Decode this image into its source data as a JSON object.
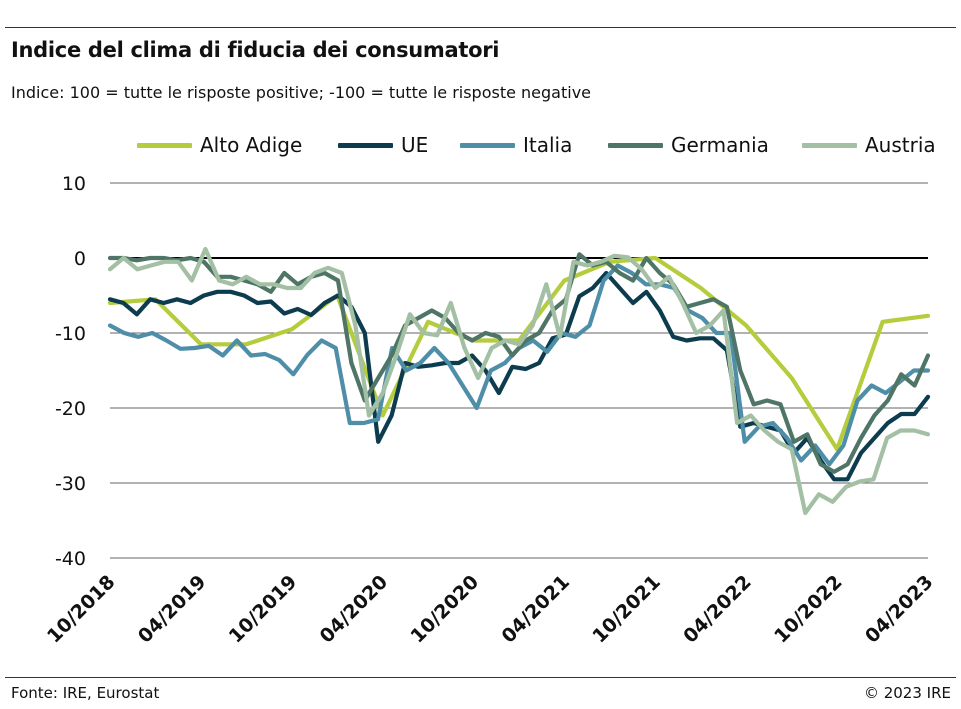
{
  "header": {
    "title": "Indice del clima di fiducia dei consumatori",
    "subtitle": "Indice: 100 = tutte le risposte positive; -100 = tutte le risposte negative"
  },
  "footer": {
    "source": "Fonte: IRE, Eurostat",
    "copyright": "© 2023 IRE"
  },
  "chart_data": {
    "type": "line",
    "title": "Indice del clima di fiducia dei consumatori",
    "ylim": [
      -40,
      10
    ],
    "yticks": [
      10,
      0,
      -10,
      -20,
      -30,
      -40
    ],
    "grid": true,
    "legend_position": "top",
    "x_labels": [
      "10/2018",
      "04/2019",
      "10/2019",
      "04/2020",
      "10/2020",
      "04/2021",
      "10/2021",
      "04/2022",
      "10/2022",
      "04/2023"
    ],
    "x_start": "10/2018",
    "x_end": "04/2023",
    "series": [
      {
        "name": "Alto Adige",
        "color": "#b5cc3c",
        "points": [
          [
            "10/2018",
            -6
          ],
          [
            "01/2019",
            -5.5
          ],
          [
            "04/2019",
            -11.5
          ],
          [
            "07/2019",
            -11.5
          ],
          [
            "10/2019",
            -9.5
          ],
          [
            "01/2020",
            -5
          ],
          [
            "04/2020",
            -21
          ],
          [
            "07/2020",
            -8.5
          ],
          [
            "10/2020",
            -11
          ],
          [
            "01/2021",
            -11
          ],
          [
            "04/2021",
            -3
          ],
          [
            "07/2021",
            -0.5
          ],
          [
            "10/2021",
            0
          ],
          [
            "01/2022",
            -4
          ],
          [
            "04/2022",
            -9
          ],
          [
            "07/2022",
            -16
          ],
          [
            "10/2022",
            -25.5
          ],
          [
            "01/2023",
            -8.5
          ],
          [
            "04/2023",
            -7.7
          ]
        ]
      },
      {
        "name": "UE",
        "color": "#0c3c4e",
        "values": [
          -5.5,
          -6,
          -7.5,
          -5.5,
          -6,
          -5.5,
          -6,
          -5,
          -4.5,
          -4.5,
          -5,
          -6,
          -5.8,
          -7.4,
          -6.8,
          -7.6,
          -6,
          -5,
          -6.5,
          -10,
          -24.5,
          -21,
          -14,
          -14.5,
          -14.3,
          -14,
          -14,
          -13,
          -15,
          -18,
          -14.5,
          -14.8,
          -14,
          -10.7,
          -10.2,
          -5.1,
          -4,
          -2,
          -4,
          -6,
          -4.5,
          -7,
          -10.5,
          -11,
          -10.7,
          -10.7,
          -12.3,
          -22.5,
          -22,
          -22.5,
          -23,
          -26,
          -24,
          -27,
          -29.5,
          -29.5,
          -26,
          -24,
          -22,
          -20.8,
          -20.8,
          -18.5
        ]
      },
      {
        "name": "Italia",
        "color": "#4f8ea8",
        "values": [
          -9,
          -10,
          -10.5,
          -10,
          -11,
          -12.1,
          -12,
          -11.7,
          -13,
          -11,
          -13,
          -12.8,
          -13.6,
          -15.5,
          -12.9,
          -11,
          -12,
          -22,
          -22,
          -21.5,
          -12,
          -15,
          -14,
          -12,
          -14,
          -17,
          -20,
          -15,
          -14,
          -12,
          -11,
          -12.5,
          -10,
          -10.5,
          -9,
          -3,
          -1,
          -2,
          -3.5,
          -3.5,
          -4,
          -7,
          -8,
          -10,
          -10,
          -24.5,
          -22.5,
          -22,
          -24,
          -27,
          -25,
          -27.5,
          -25,
          -19,
          -17,
          -18,
          -16.5,
          -15,
          -15
        ]
      },
      {
        "name": "Germania",
        "color": "#4e7566",
        "values": [
          0,
          0,
          -0.3,
          0,
          0,
          -0.3,
          0,
          -0.5,
          -2.5,
          -2.5,
          -3,
          -3.5,
          -4.5,
          -2,
          -3.5,
          -2.5,
          -2,
          -3,
          -14,
          -19,
          -16,
          -13,
          -9,
          -8,
          -7,
          -8,
          -10,
          -11,
          -10,
          -10.5,
          -13,
          -11,
          -10,
          -7,
          -5.5,
          0.5,
          -1,
          -0.5,
          -2,
          -3,
          0,
          -2,
          -3.5,
          -6.5,
          -6,
          -5.5,
          -6.5,
          -15,
          -19.5,
          -19,
          -19.5,
          -24.5,
          -23.5,
          -27.5,
          -28.5,
          -27.5,
          -24,
          -21,
          -19,
          -15.5,
          -17,
          -13
        ]
      },
      {
        "name": "Austria",
        "color": "#a3bfa4",
        "values": [
          -1.5,
          0,
          -1.5,
          -1,
          -0.5,
          -0.5,
          -3,
          1.2,
          -3,
          -3.5,
          -2.5,
          -3.5,
          -3.5,
          -4,
          -4,
          -2,
          -1.3,
          -2,
          -9,
          -21,
          -18,
          -13,
          -7.5,
          -10,
          -10.3,
          -6,
          -12,
          -16,
          -12,
          -11,
          -11.5,
          -9,
          -3.5,
          -10.5,
          -0.5,
          -1,
          -0.5,
          0.3,
          0.1,
          -1.5,
          -4,
          -2.5,
          -6,
          -10,
          -9,
          -7,
          -22,
          -21,
          -23,
          -24.5,
          -25.5,
          -34,
          -31.5,
          -32.5,
          -30.5,
          -29.8,
          -29.5,
          -24,
          -23,
          -23,
          -23.5
        ]
      }
    ]
  }
}
